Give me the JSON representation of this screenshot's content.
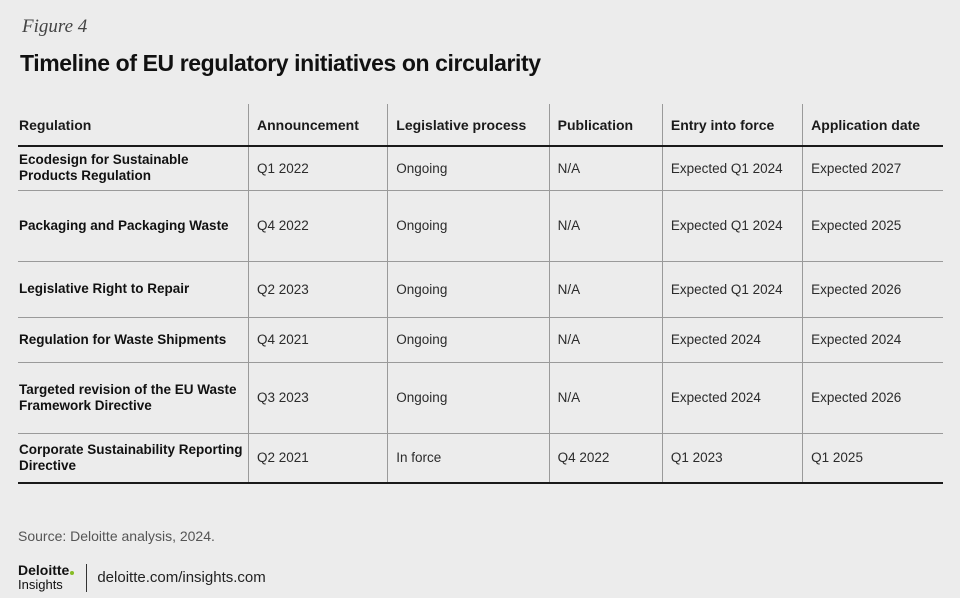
{
  "figure_label": "Figure 4",
  "title": "Timeline of EU regulatory initiatives on circularity",
  "table": {
    "headers": [
      "Regulation",
      "Announcement",
      "Legislative process",
      "Publication",
      "Entry into force",
      "Application date"
    ],
    "rows": [
      [
        "Ecodesign for Sustainable Products Regulation",
        "Q1 2022",
        "Ongoing",
        "N/A",
        "Expected Q1 2024",
        "Expected 2027"
      ],
      [
        "Packaging and Packaging Waste",
        "Q4 2022",
        "Ongoing",
        "N/A",
        "Expected Q1 2024",
        "Expected 2025"
      ],
      [
        "Legislative Right to Repair",
        "Q2 2023",
        "Ongoing",
        "N/A",
        "Expected Q1 2024",
        "Expected 2026"
      ],
      [
        "Regulation for Waste Shipments",
        "Q4 2021",
        "Ongoing",
        "N/A",
        "Expected 2024",
        "Expected 2024"
      ],
      [
        "Targeted revision of the EU Waste Framework Directive",
        "Q3 2023",
        "Ongoing",
        "N/A",
        "Expected 2024",
        "Expected 2026"
      ],
      [
        "Corporate Sustainability Reporting Directive",
        "Q2 2021",
        "In force",
        "Q4 2022",
        "Q1 2023",
        "Q1 2025"
      ]
    ]
  },
  "source": "Source: Deloitte analysis, 2024.",
  "footer": {
    "logo_main": "Deloitte",
    "logo_sub": "Insights",
    "url": "deloitte.com/insights.com"
  },
  "colors": {
    "background": "#ececec",
    "accent_dot": "#86bc25"
  }
}
